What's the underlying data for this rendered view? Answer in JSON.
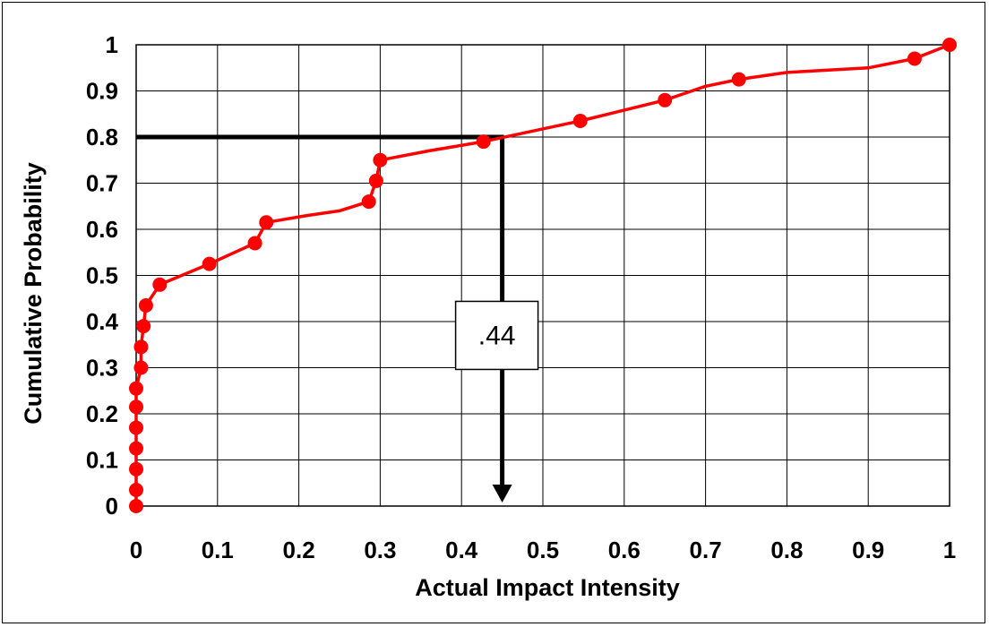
{
  "chart_data": {
    "type": "line",
    "title": "",
    "xlabel": "Actual Impact Intensity",
    "ylabel": "Cumulative Probability",
    "xlim": [
      0,
      1
    ],
    "ylim": [
      0,
      1
    ],
    "grid": true,
    "legend": "none",
    "x_ticks": [
      "0",
      "0.1",
      "0.2",
      "0.3",
      "0.4",
      "0.5",
      "0.6",
      "0.7",
      "0.8",
      "0.9",
      "1"
    ],
    "y_ticks": [
      "0",
      "0.1",
      "0.2",
      "0.3",
      "0.4",
      "0.5",
      "0.6",
      "0.7",
      "0.8",
      "0.9",
      "1"
    ],
    "series": [
      {
        "color": "#ff0000",
        "markers": [
          [
            0.0,
            0.0
          ],
          [
            0.0,
            0.035
          ],
          [
            0.0,
            0.08
          ],
          [
            0.0,
            0.125
          ],
          [
            0.0,
            0.17
          ],
          [
            0.0,
            0.215
          ],
          [
            0.0,
            0.255
          ],
          [
            0.006,
            0.3
          ],
          [
            0.006,
            0.345
          ],
          [
            0.009,
            0.39
          ],
          [
            0.012,
            0.435
          ],
          [
            0.029,
            0.48
          ],
          [
            0.09,
            0.525
          ],
          [
            0.146,
            0.57
          ],
          [
            0.16,
            0.615
          ],
          [
            0.286,
            0.66
          ],
          [
            0.295,
            0.705
          ],
          [
            0.3,
            0.75
          ],
          [
            0.427,
            0.79
          ],
          [
            0.546,
            0.835
          ],
          [
            0.65,
            0.88
          ],
          [
            0.741,
            0.925
          ],
          [
            0.957,
            0.97
          ],
          [
            1.0,
            1.0
          ]
        ],
        "line": [
          [
            0.0,
            0.0
          ],
          [
            0.0,
            0.035
          ],
          [
            0.0,
            0.08
          ],
          [
            0.0,
            0.125
          ],
          [
            0.0,
            0.17
          ],
          [
            0.0,
            0.215
          ],
          [
            0.0,
            0.255
          ],
          [
            0.006,
            0.3
          ],
          [
            0.006,
            0.345
          ],
          [
            0.009,
            0.39
          ],
          [
            0.012,
            0.435
          ],
          [
            0.029,
            0.48
          ],
          [
            0.09,
            0.525
          ],
          [
            0.146,
            0.57
          ],
          [
            0.16,
            0.615
          ],
          [
            0.21,
            0.63
          ],
          [
            0.25,
            0.64
          ],
          [
            0.286,
            0.66
          ],
          [
            0.295,
            0.705
          ],
          [
            0.3,
            0.75
          ],
          [
            0.36,
            0.77
          ],
          [
            0.427,
            0.79
          ],
          [
            0.546,
            0.835
          ],
          [
            0.65,
            0.88
          ],
          [
            0.7,
            0.91
          ],
          [
            0.741,
            0.925
          ],
          [
            0.8,
            0.94
          ],
          [
            0.9,
            0.95
          ],
          [
            0.957,
            0.97
          ],
          [
            1.0,
            1.0
          ]
        ]
      }
    ],
    "annotation": {
      "text": ".44",
      "reference_probability": 0.8,
      "reference_intensity": 0.45,
      "label_at": [
        0.43,
        0.37
      ],
      "color": "#000000"
    }
  }
}
